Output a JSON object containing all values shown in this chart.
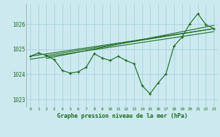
{
  "title": "Graphe pression niveau de la mer (hPa)",
  "bg_color": "#cce9f0",
  "grid_color": "#aad4dc",
  "line_color": "#1a6b1a",
  "text_color": "#1a6b1a",
  "xlim": [
    -0.5,
    23.5
  ],
  "ylim": [
    1022.7,
    1026.8
  ],
  "yticks": [
    1023,
    1024,
    1025,
    1026
  ],
  "xticks": [
    0,
    1,
    2,
    3,
    4,
    5,
    6,
    7,
    8,
    9,
    10,
    11,
    12,
    13,
    14,
    15,
    16,
    17,
    18,
    19,
    20,
    21,
    22,
    23
  ],
  "data_x": [
    0,
    1,
    2,
    3,
    4,
    5,
    6,
    7,
    8,
    9,
    10,
    11,
    12,
    13,
    14,
    15,
    16,
    17,
    18,
    19,
    20,
    21,
    22,
    23
  ],
  "data_y": [
    1024.72,
    1024.85,
    1024.75,
    1024.58,
    1024.15,
    1024.05,
    1024.1,
    1024.28,
    1024.82,
    1024.65,
    1024.55,
    1024.72,
    1024.55,
    1024.42,
    1023.55,
    1023.22,
    1023.65,
    1024.02,
    1025.12,
    1025.48,
    1026.02,
    1026.42,
    1025.98,
    1025.82
  ],
  "trend_lines": [
    {
      "x0": 0,
      "y0": 1024.72,
      "x1": 23,
      "y1": 1025.82
    },
    {
      "x0": 0,
      "y0": 1024.6,
      "x1": 23,
      "y1": 1025.7
    },
    {
      "x0": 2,
      "y0": 1024.75,
      "x1": 23,
      "y1": 1025.82
    },
    {
      "x0": 2,
      "y0": 1024.63,
      "x1": 23,
      "y1": 1025.95
    }
  ],
  "figsize": [
    3.2,
    2.0
  ],
  "dpi": 100
}
